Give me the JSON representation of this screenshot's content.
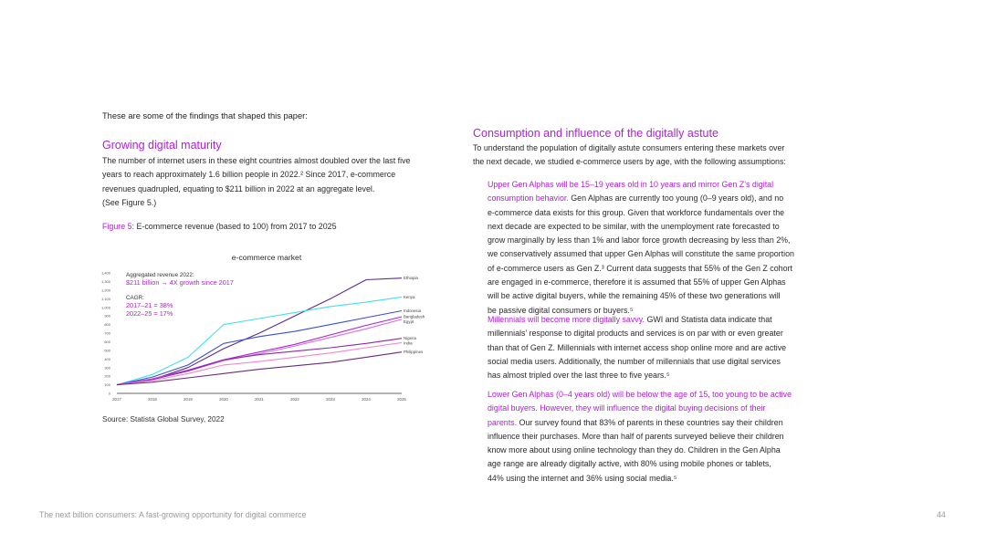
{
  "intro": "These are some of the findings that shaped this paper:",
  "left": {
    "heading": "Growing digital maturity",
    "body_lines": [
      "The number of internet users in these eight countries almost doubled over the last five",
      "years to reach approximately 1.6 billion people in 2022.² Since 2017, e-commerce",
      "revenues quadrupled, equating to $211 billion in 2022 at an aggregate level.",
      "(See Figure 5.)"
    ],
    "figure_label": "Figure 5:",
    "figure_caption": " E-commerce revenue (based to 100) from 2017 to 2025",
    "source": "Source: Statista Global Survey, 2022"
  },
  "right": {
    "heading": "Consumption and influence of the digitally astute",
    "intro_lines": [
      "To understand the population of digitally astute consumers entering these markets over",
      "the next decade, we studied e-commerce users by age, with the following assumptions:"
    ],
    "para1": {
      "highlight_lines": [
        "Upper Gen Alphas will be 15–19 years old in 10 years and mirror Gen Z’s digital",
        "consumption behavior."
      ],
      "rest_first": " Gen Alphas are currently too young (0–9 years old), and no",
      "rest_lines": [
        "e-commerce data exists for this group. Given that workforce fundamentals over the",
        "next decade are expected to be similar, with the unemployment rate forecasted to",
        "grow marginally by less than 1% and labor force growth decreasing by less than 2%,",
        "we conservatively assumed that upper Gen Alphas will constitute the same proportion",
        "of e-commerce users as Gen Z.³ Current data suggests that 55% of the Gen Z cohort",
        "are engaged in e-commerce, therefore it is assumed that 55% of upper Gen Alphas",
        "will be active digital buyers, while the remaining 45% of these two generations will",
        "be passive digital consumers or buyers.⁵"
      ]
    },
    "para2": {
      "highlight": "Millennials will become more digitally savvy.",
      "rest_first": " GWI and Statista data indicate that",
      "rest_lines": [
        "millennials’ response to digital products and services is on par with or even greater",
        "than that of Gen Z. Millennials with internet access shop online more and are active",
        "social media users. Additionally, the number of millennials that use digital services",
        "has almost tripled over the last three to five years.⁵"
      ]
    },
    "para3": {
      "highlight_lines": [
        "Lower Gen Alphas (0–4 years old) will be below the age of 15, too young to be active",
        "digital buyers. However, they will influence the digital buying decisions of their",
        "parents."
      ],
      "rest_first": " Our survey found that 83% of parents in these countries say their children",
      "rest_lines": [
        "influence their purchases. More than half of parents surveyed believe their children",
        "know more about using online technology than they do. Children in the Gen Alpha",
        "age range are already digitally active, with 80% using mobile phones or tablets,",
        "44% using the internet and 36% using social media.⁵"
      ]
    }
  },
  "footer": {
    "title": "The next billion consumers: A fast-growing opportunity for digital commerce",
    "page_number": "44"
  },
  "chart_data": {
    "type": "line",
    "title": "e-commerce market",
    "xlabel": "",
    "ylabel": "",
    "x": [
      "2017",
      "2018",
      "2019",
      "2020",
      "2021",
      "2022",
      "2023",
      "2024",
      "2025"
    ],
    "ylim": [
      0,
      1400
    ],
    "yticks": [
      "0",
      "100",
      "200",
      "300",
      "400",
      "500",
      "600",
      "700",
      "800",
      "900",
      "1,000",
      "1,100",
      "1,200",
      "1,300",
      "1,400"
    ],
    "grid": false,
    "annotations": {
      "aggregate_label": "Aggregated revenue 2022:",
      "aggregate_value": "$211 billion → 4X growth since 2017",
      "cagr_label": "CAGR:",
      "cagr_1": "2017–21 = 38%",
      "cagr_2": "2022–25 = 17%"
    },
    "series": [
      {
        "name": "Ethiopia",
        "color": "#5a2a90",
        "values": [
          100,
          160,
          300,
          520,
          700,
          900,
          1100,
          1320,
          1340
        ]
      },
      {
        "name": "Kenya",
        "color": "#3fe0f0",
        "values": [
          100,
          220,
          420,
          800,
          870,
          940,
          1010,
          1060,
          1120
        ]
      },
      {
        "name": "Indonesia",
        "color": "#3a4ed8",
        "values": [
          100,
          190,
          330,
          580,
          660,
          720,
          800,
          880,
          960
        ]
      },
      {
        "name": "Bangladesh",
        "color": "#b020d8",
        "values": [
          100,
          170,
          270,
          390,
          480,
          570,
          680,
          790,
          890
        ]
      },
      {
        "name": "Egypt",
        "color": "#d070e8",
        "values": [
          100,
          165,
          260,
          380,
          460,
          550,
          650,
          750,
          860
        ]
      },
      {
        "name": "Nigeria",
        "color": "#8a2aa8",
        "values": [
          100,
          160,
          260,
          390,
          450,
          490,
          530,
          580,
          640
        ]
      },
      {
        "name": "India",
        "color": "#f08ac8",
        "values": [
          100,
          150,
          230,
          330,
          370,
          420,
          470,
          530,
          590
        ]
      },
      {
        "name": "Philippines",
        "color": "#6a2a80",
        "values": [
          100,
          130,
          180,
          230,
          280,
          320,
          360,
          420,
          480
        ]
      }
    ],
    "end_label_order": [
      "Ethiopia",
      "Kenya",
      "Indonesia",
      "Bangladesh",
      "Egypt",
      "Nigeria",
      "India",
      "Philippines"
    ]
  }
}
